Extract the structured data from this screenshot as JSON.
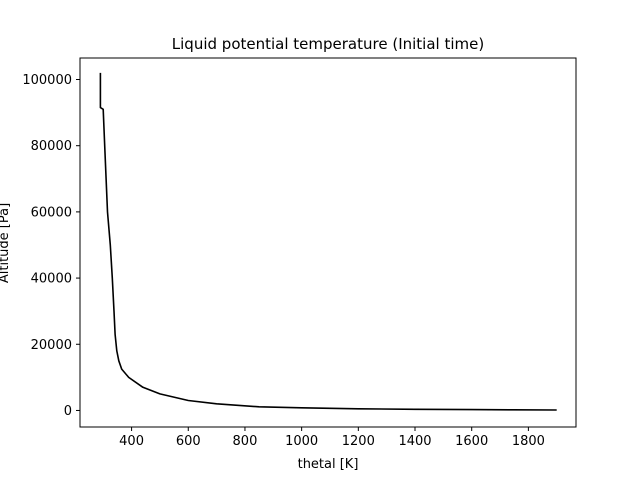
{
  "chart_data": {
    "type": "line",
    "title": "Liquid potential temperature (Initial time)",
    "xlabel": "thetal [K]",
    "ylabel": "Altitude [Pa]",
    "xlim": [
      218,
      1968
    ],
    "ylim": [
      -5000,
      106500
    ],
    "x_ticks": [
      400,
      600,
      800,
      1000,
      1200,
      1400,
      1600,
      1800
    ],
    "y_ticks": [
      0,
      20000,
      40000,
      60000,
      80000,
      100000
    ],
    "grid": false,
    "legend": "none",
    "series": [
      {
        "color": "#000000",
        "points": [
          [
            290,
            102000
          ],
          [
            290,
            91500
          ],
          [
            300,
            91000
          ],
          [
            305,
            80000
          ],
          [
            310,
            70000
          ],
          [
            315,
            60000
          ],
          [
            325,
            50000
          ],
          [
            332,
            40000
          ],
          [
            338,
            30000
          ],
          [
            342,
            23000
          ],
          [
            348,
            18000
          ],
          [
            355,
            15000
          ],
          [
            365,
            12500
          ],
          [
            390,
            10000
          ],
          [
            440,
            7000
          ],
          [
            500,
            5000
          ],
          [
            600,
            3000
          ],
          [
            700,
            2000
          ],
          [
            850,
            1100
          ],
          [
            1000,
            800
          ],
          [
            1200,
            500
          ],
          [
            1400,
            350
          ],
          [
            1600,
            250
          ],
          [
            1750,
            200
          ],
          [
            1900,
            150
          ]
        ]
      }
    ]
  }
}
